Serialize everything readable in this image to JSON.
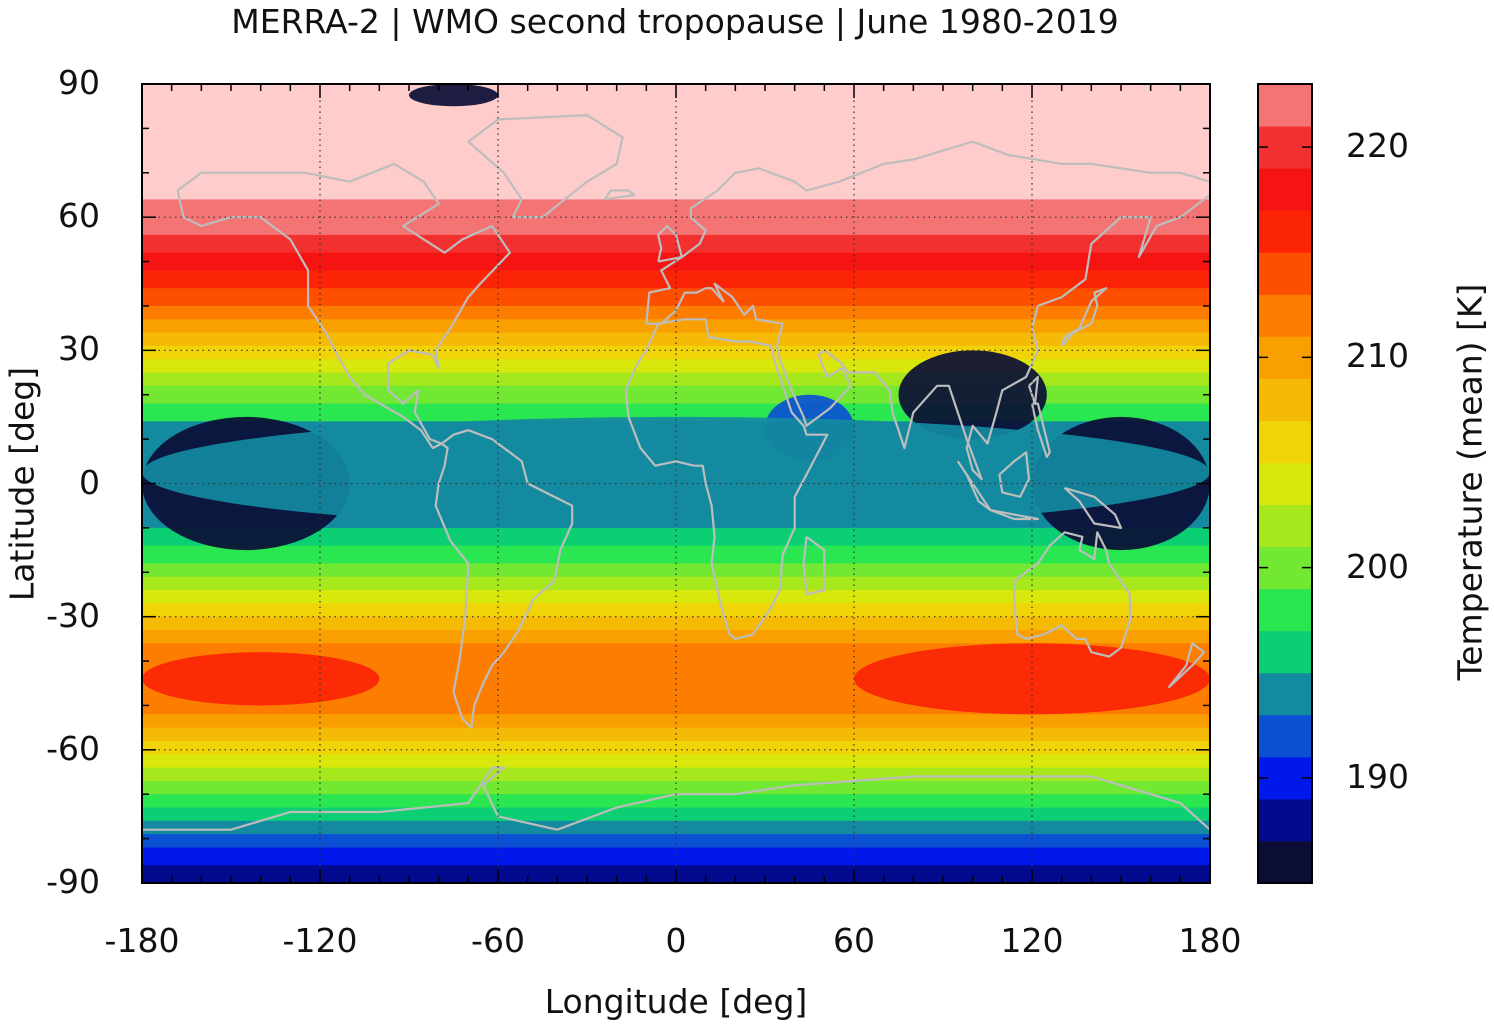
{
  "title": "MERRA-2 | WMO second tropopause | June 1980-2019",
  "xlabel": "Longitude [deg]",
  "ylabel": "Latitude [deg]",
  "colorbar_label": "Temperature (mean) [K]",
  "x_ticks": [
    "-180",
    "-120",
    "-60",
    "0",
    "60",
    "120",
    "180"
  ],
  "y_ticks": [
    "90",
    "60",
    "30",
    "0",
    "-30",
    "-60",
    "-90"
  ],
  "colorbar_ticks": [
    "220",
    "210",
    "200",
    "190"
  ],
  "chart_data": {
    "type": "heatmap",
    "title": "MERRA-2 | WMO second tropopause | June 1980-2019",
    "xlabel": "Longitude [deg]",
    "ylabel": "Latitude [deg]",
    "xlim": [
      -180,
      180
    ],
    "ylim": [
      -90,
      90
    ],
    "x_ticks": [
      -180,
      -120,
      -60,
      0,
      60,
      120,
      180
    ],
    "y_ticks": [
      90,
      60,
      30,
      0,
      -30,
      -60,
      -90
    ],
    "grid": true,
    "colorbar": {
      "label": "Temperature (mean) [K]",
      "range": [
        185,
        223
      ],
      "ticks": [
        220,
        210,
        200,
        190
      ],
      "levels": [
        {
          "min": 185,
          "max": 187,
          "color": "#0b0d35"
        },
        {
          "min": 187,
          "max": 189,
          "color": "#030a8d"
        },
        {
          "min": 189,
          "max": 191,
          "color": "#0118ed"
        },
        {
          "min": 191,
          "max": 193,
          "color": "#0b50d2"
        },
        {
          "min": 193,
          "max": 195,
          "color": "#138a9f"
        },
        {
          "min": 195,
          "max": 197,
          "color": "#0ccf74"
        },
        {
          "min": 197,
          "max": 199,
          "color": "#2ae650"
        },
        {
          "min": 199,
          "max": 201,
          "color": "#72e832"
        },
        {
          "min": 201,
          "max": 203,
          "color": "#a6e81c"
        },
        {
          "min": 203,
          "max": 205,
          "color": "#d9e80c"
        },
        {
          "min": 205,
          "max": 207,
          "color": "#f0d407"
        },
        {
          "min": 207,
          "max": 209,
          "color": "#f4ba05"
        },
        {
          "min": 209,
          "max": 211,
          "color": "#f9a000"
        },
        {
          "min": 211,
          "max": 213,
          "color": "#fc7d00"
        },
        {
          "min": 213,
          "max": 215,
          "color": "#fd4f00"
        },
        {
          "min": 215,
          "max": 217,
          "color": "#fb2406"
        },
        {
          "min": 217,
          "max": 219,
          "color": "#f51412"
        },
        {
          "min": 219,
          "max": 221,
          "color": "#f33030"
        },
        {
          "min": 221,
          "max": 223,
          "color": "#f47474"
        },
        {
          "min": 223,
          "max": 225,
          "color": "#fdcccb"
        }
      ]
    },
    "zonal_bands": [
      {
        "lat_from": 90,
        "lat_to": 64,
        "value": 224
      },
      {
        "lat_from": 64,
        "lat_to": 56,
        "value": 222
      },
      {
        "lat_from": 56,
        "lat_to": 52,
        "value": 220
      },
      {
        "lat_from": 52,
        "lat_to": 48,
        "value": 218
      },
      {
        "lat_from": 48,
        "lat_to": 44,
        "value": 216
      },
      {
        "lat_from": 44,
        "lat_to": 40,
        "value": 214
      },
      {
        "lat_from": 40,
        "lat_to": 37,
        "value": 212
      },
      {
        "lat_from": 37,
        "lat_to": 34,
        "value": 210
      },
      {
        "lat_from": 34,
        "lat_to": 31,
        "value": 208
      },
      {
        "lat_from": 31,
        "lat_to": 28,
        "value": 206
      },
      {
        "lat_from": 28,
        "lat_to": 25,
        "value": 204
      },
      {
        "lat_from": 25,
        "lat_to": 22,
        "value": 202
      },
      {
        "lat_from": 22,
        "lat_to": 18,
        "value": 200
      },
      {
        "lat_from": 18,
        "lat_to": 14,
        "value": 198
      },
      {
        "lat_from": 14,
        "lat_to": -10,
        "value": 194
      },
      {
        "lat_from": -10,
        "lat_to": -14,
        "value": 196
      },
      {
        "lat_from": -14,
        "lat_to": -18,
        "value": 198
      },
      {
        "lat_from": -18,
        "lat_to": -21,
        "value": 200
      },
      {
        "lat_from": -21,
        "lat_to": -24,
        "value": 202
      },
      {
        "lat_from": -24,
        "lat_to": -27,
        "value": 204
      },
      {
        "lat_from": -27,
        "lat_to": -30,
        "value": 206
      },
      {
        "lat_from": -30,
        "lat_to": -33,
        "value": 208
      },
      {
        "lat_from": -33,
        "lat_to": -36,
        "value": 210
      },
      {
        "lat_from": -36,
        "lat_to": -52,
        "value": 212
      },
      {
        "lat_from": -52,
        "lat_to": -55,
        "value": 210
      },
      {
        "lat_from": -55,
        "lat_to": -58,
        "value": 208
      },
      {
        "lat_from": -58,
        "lat_to": -61,
        "value": 206
      },
      {
        "lat_from": -61,
        "lat_to": -64,
        "value": 204
      },
      {
        "lat_from": -64,
        "lat_to": -67,
        "value": 202
      },
      {
        "lat_from": -67,
        "lat_to": -70,
        "value": 200
      },
      {
        "lat_from": -70,
        "lat_to": -73,
        "value": 198
      },
      {
        "lat_from": -73,
        "lat_to": -76,
        "value": 196
      },
      {
        "lat_from": -76,
        "lat_to": -79,
        "value": 194
      },
      {
        "lat_from": -79,
        "lat_to": -82,
        "value": 192
      },
      {
        "lat_from": -82,
        "lat_to": -86,
        "value": 190
      },
      {
        "lat_from": -86,
        "lat_to": -90,
        "value": 188
      }
    ],
    "regional_features": [
      {
        "lon": [
          -180,
          -100
        ],
        "lat": [
          -50,
          -38
        ],
        "value": 216
      },
      {
        "lon": [
          60,
          180
        ],
        "lat": [
          -52,
          -36
        ],
        "value": 216
      },
      {
        "lon": [
          75,
          125
        ],
        "lat": [
          10,
          30
        ],
        "value": 186
      },
      {
        "lon": [
          -180,
          -110
        ],
        "lat": [
          -15,
          15
        ],
        "value": 186
      },
      {
        "lon": [
          120,
          180
        ],
        "lat": [
          -15,
          15
        ],
        "value": 186
      },
      {
        "lon": [
          -90,
          -60
        ],
        "lat": [
          85,
          90
        ],
        "value": 186
      },
      {
        "lon": [
          30,
          60
        ],
        "lat": [
          5,
          20
        ],
        "value": 192
      },
      {
        "lon": [
          -180,
          180
        ],
        "lat": [
          -10,
          15
        ],
        "value": 194
      }
    ]
  }
}
